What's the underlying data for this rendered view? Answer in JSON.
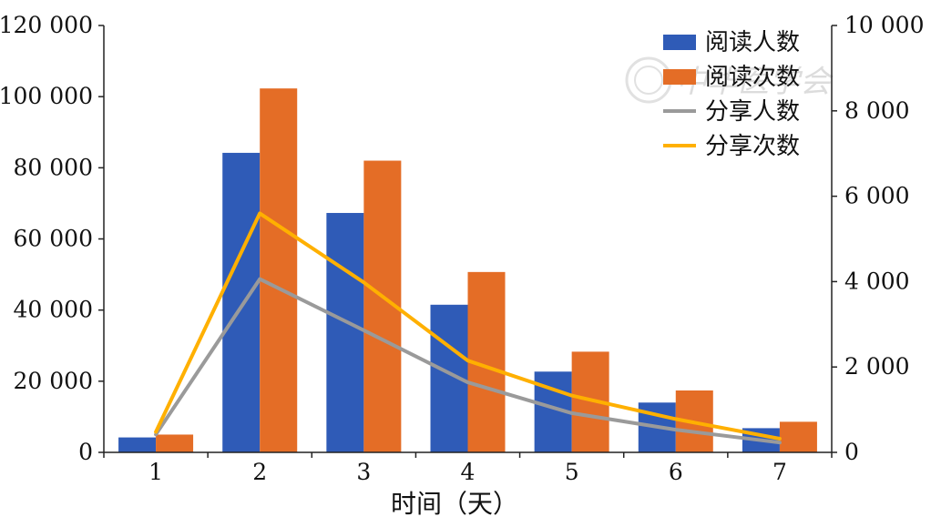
{
  "chart_data": {
    "type": "bar",
    "categories": [
      "1",
      "2",
      "3",
      "4",
      "5",
      "6",
      "7"
    ],
    "xlabel": "时间（天）",
    "ylim_left": [
      0,
      120000
    ],
    "ylim_right": [
      0,
      10000
    ],
    "left_ticks": [
      "0",
      "20 000",
      "40 000",
      "60 000",
      "80 000",
      "100 000",
      "120 000"
    ],
    "right_ticks": [
      "0",
      "2 000",
      "4 000",
      "6 000",
      "8 000",
      "10 000"
    ],
    "legend_position": "top-right",
    "grid": false,
    "bar_series": [
      {
        "name": "阅读人数",
        "color": "#2f5bb7",
        "axis": "left",
        "values": [
          4200,
          84200,
          67300,
          41500,
          22700,
          14000,
          6800
        ]
      },
      {
        "name": "阅读次数",
        "color": "#e46d26",
        "axis": "left",
        "values": [
          5000,
          102300,
          82000,
          50700,
          28300,
          17400,
          8600
        ]
      }
    ],
    "line_series": [
      {
        "name": "分享人数",
        "color": "#9a9a9a",
        "axis": "right",
        "values": [
          420,
          4060,
          2860,
          1640,
          920,
          530,
          230
        ]
      },
      {
        "name": "分享次数",
        "color": "#ffb000",
        "axis": "right",
        "values": [
          480,
          5600,
          3980,
          2150,
          1330,
          780,
          320
        ]
      }
    ]
  },
  "watermark": {
    "text": "中华医学会",
    "icon": "seal-logo"
  }
}
